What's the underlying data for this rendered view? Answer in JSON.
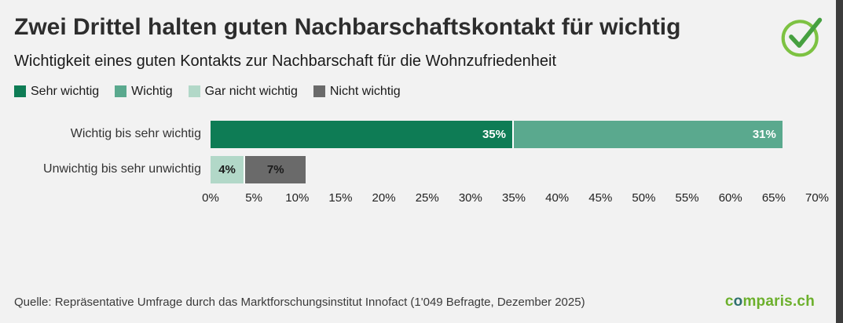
{
  "page": {
    "background": "#f2f2f2"
  },
  "header": {
    "title": "Zwei Drittel halten guten Nachbarschaftskontakt für wichtig",
    "subtitle": "Wichtigkeit eines guten Kontakts zur Nachbarschaft für die Wohnzufriedenheit"
  },
  "colors": {
    "sehr_wichtig": "#0e7c55",
    "wichtig": "#5aa98e",
    "gar_nicht_wichtig": "#b2d8c8",
    "nicht_wichtig": "#6a6a6a",
    "check_circle": "#7dc242",
    "check_mark": "#46a040"
  },
  "legend": [
    {
      "label": "Sehr wichtig",
      "color": "#0e7c55"
    },
    {
      "label": "Wichtig",
      "color": "#5aa98e"
    },
    {
      "label": "Gar nicht wichtig",
      "color": "#b2d8c8"
    },
    {
      "label": "Nicht wichtig",
      "color": "#6a6a6a"
    }
  ],
  "chart_data": {
    "type": "bar",
    "orientation": "horizontal",
    "stacked": true,
    "legend_position": "top-left",
    "grid": false,
    "categories": [
      "Wichtig bis sehr wichtig",
      "Unwichtig bis sehr unwichtig"
    ],
    "x_axis": {
      "min": 0,
      "max": 70,
      "tick_step": 5,
      "unit": "%",
      "tick_labels": [
        "0%",
        "5%",
        "10%",
        "15%",
        "20%",
        "25%",
        "30%",
        "35%",
        "40%",
        "45%",
        "50%",
        "55%",
        "60%",
        "65%",
        "70%"
      ]
    },
    "rows": [
      {
        "category": "Wichtig bis sehr wichtig",
        "segments": [
          {
            "series": "Sehr wichtig",
            "value": 35,
            "label": "35%",
            "color": "#0e7c55",
            "label_color": "#ffffff"
          },
          {
            "series": "Wichtig",
            "value": 31,
            "label": "31%",
            "color": "#5aa98e",
            "label_color": "#ffffff"
          }
        ]
      },
      {
        "category": "Unwichtig bis sehr unwichtig",
        "segments": [
          {
            "series": "Gar nicht wichtig",
            "value": 4,
            "label": "4%",
            "color": "#b2d8c8",
            "label_color": "#1a1a1a"
          },
          {
            "series": "Nicht wichtig",
            "value": 7,
            "label": "7%",
            "color": "#6a6a6a",
            "label_color": "#1a1a1a"
          }
        ]
      }
    ]
  },
  "footer": {
    "source": "Quelle: Repräsentative Umfrage durch das Marktforschungsinstitut Innofact (1'049 Befragte, Dezember 2025)"
  },
  "logo": {
    "part1": "c",
    "part2": "o",
    "part3": "mparis.ch"
  }
}
